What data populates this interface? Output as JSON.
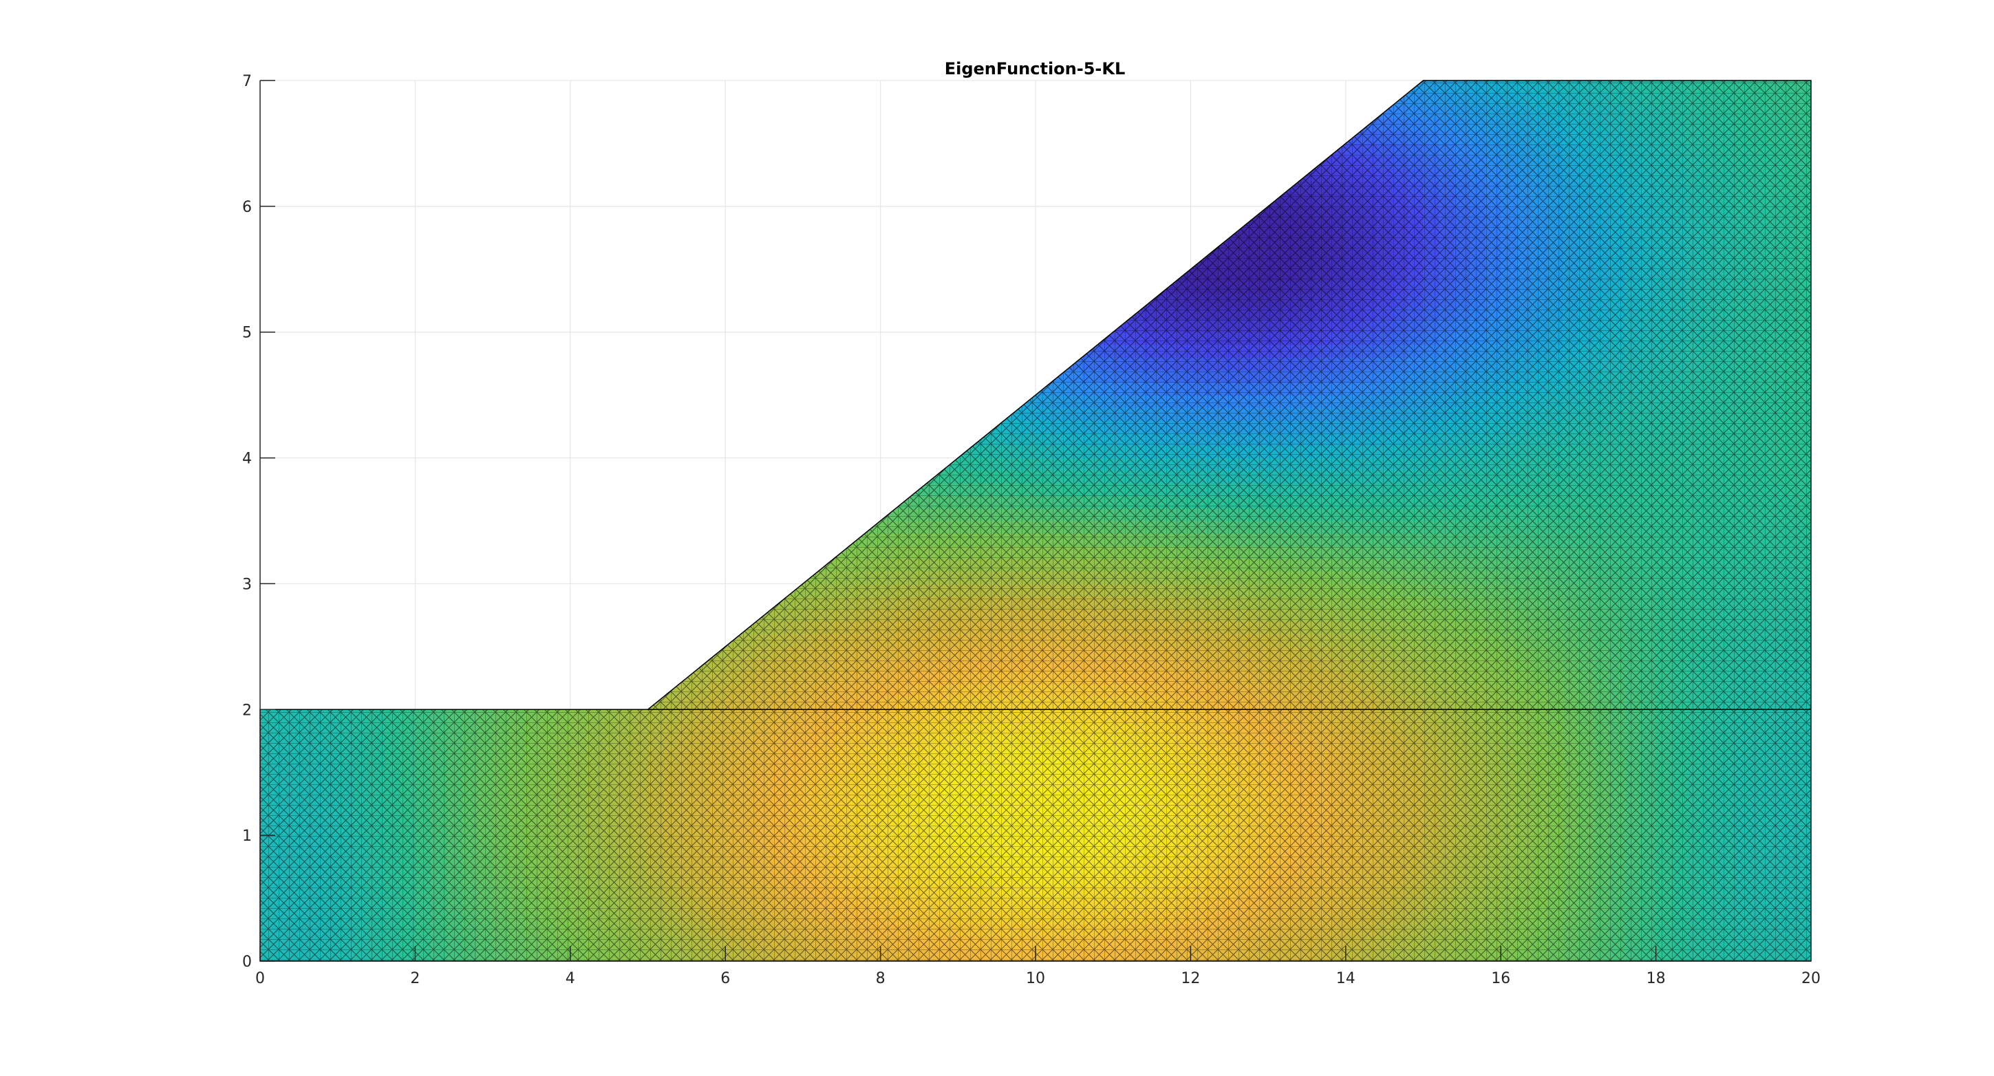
{
  "chart_data": {
    "type": "heatmap",
    "title": "EigenFunction-5-KL",
    "xlabel": "",
    "ylabel": "",
    "xlim": [
      0,
      20
    ],
    "ylim": [
      0,
      7
    ],
    "x_ticks": [
      0,
      2,
      4,
      6,
      8,
      10,
      12,
      14,
      16,
      18,
      20
    ],
    "y_ticks": [
      0,
      1,
      2,
      3,
      4,
      5,
      6,
      7
    ],
    "grid": true,
    "colormap": "parula",
    "domain_outline": [
      [
        0,
        0
      ],
      [
        20,
        0
      ],
      [
        20,
        7
      ],
      [
        15,
        7
      ],
      [
        5,
        2
      ],
      [
        0,
        2
      ]
    ],
    "interior_line": [
      [
        5,
        2
      ],
      [
        20,
        2
      ]
    ],
    "field_extrema": [
      {
        "kind": "max",
        "x": 10,
        "y": 1.2,
        "level": 1.0
      },
      {
        "kind": "min",
        "x": 12.5,
        "y": 5.7,
        "level": 0.0
      }
    ],
    "colors": {
      "low": "#3e26a8",
      "mid": "#24bfad",
      "high": "#f5e42a",
      "mesh_lines": "#000000"
    }
  }
}
